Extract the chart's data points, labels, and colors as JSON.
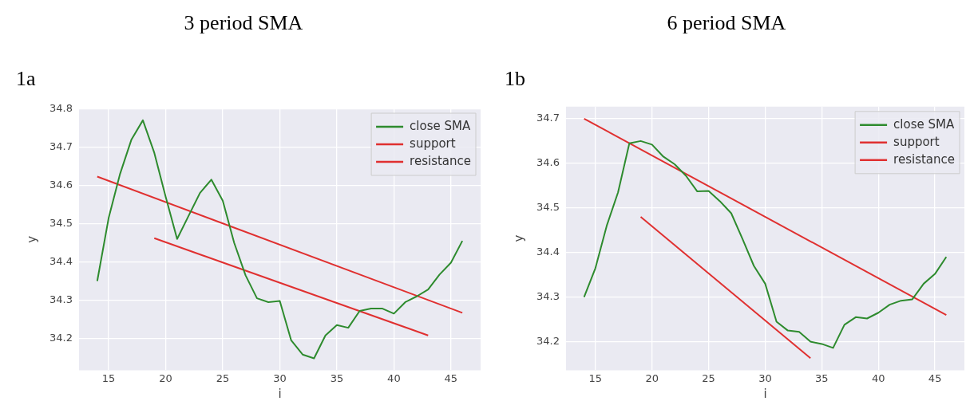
{
  "chart_data": [
    {
      "type": "line",
      "title": "3 period SMA",
      "subtitle": "1a",
      "xlabel": "i",
      "ylabel": "y",
      "xlim": [
        12.4,
        47.6
      ],
      "xticks": [
        15,
        20,
        25,
        30,
        35,
        40,
        45
      ],
      "ylim": [
        34.117,
        34.801
      ],
      "yticks": [
        34.2,
        34.3,
        34.4,
        34.5,
        34.6,
        34.7,
        34.8
      ],
      "grid": true,
      "legend": "top right",
      "line_style": "solid",
      "marker": "none",
      "series": [
        {
          "name": "close SMA",
          "color": "#2e8b2e",
          "x": [
            14,
            15,
            16,
            17,
            18,
            19,
            20,
            21,
            22,
            23,
            24,
            25,
            26,
            27,
            28,
            29,
            30,
            31,
            32,
            33,
            34,
            35,
            36,
            37,
            38,
            39,
            40,
            41,
            42,
            43,
            44,
            45,
            46
          ],
          "values": [
            34.35,
            34.515,
            34.63,
            34.72,
            34.77,
            34.685,
            34.57,
            34.46,
            34.52,
            34.58,
            34.615,
            34.56,
            34.45,
            34.365,
            34.305,
            34.295,
            34.298,
            34.195,
            34.158,
            34.148,
            34.208,
            34.235,
            34.228,
            34.272,
            34.278,
            34.278,
            34.265,
            34.295,
            34.31,
            34.328,
            34.367,
            34.398,
            34.455
          ]
        },
        {
          "name": "support",
          "color": "#e03030",
          "x": [
            19,
            43
          ],
          "values": [
            34.462,
            34.208
          ]
        },
        {
          "name": "resistance",
          "color": "#e03030",
          "x": [
            14,
            46
          ],
          "values": [
            34.623,
            34.267
          ]
        }
      ]
    },
    {
      "type": "line",
      "title": "6 period SMA",
      "subtitle": "1b",
      "xlabel": "i",
      "ylabel": "y",
      "xlim": [
        12.4,
        47.6
      ],
      "xticks": [
        15,
        20,
        25,
        30,
        35,
        40,
        45
      ],
      "ylim": [
        34.136,
        34.727
      ],
      "yticks": [
        34.2,
        34.3,
        34.4,
        34.5,
        34.6,
        34.7
      ],
      "grid": true,
      "legend": "top right",
      "line_style": "solid",
      "marker": "none",
      "series": [
        {
          "name": "close SMA",
          "color": "#2e8b2e",
          "x": [
            14,
            15,
            16,
            17,
            18,
            19,
            20,
            21,
            22,
            23,
            24,
            25,
            26,
            27,
            28,
            29,
            30,
            31,
            32,
            33,
            34,
            35,
            36,
            37,
            38,
            39,
            40,
            41,
            42,
            43,
            44,
            45,
            46
          ],
          "values": [
            34.3,
            34.365,
            34.46,
            34.535,
            34.645,
            34.65,
            34.642,
            34.615,
            34.598,
            34.572,
            34.537,
            34.538,
            34.515,
            34.488,
            34.43,
            34.37,
            34.33,
            34.245,
            34.225,
            34.222,
            34.2,
            34.195,
            34.186,
            34.238,
            34.255,
            34.252,
            34.265,
            34.283,
            34.292,
            34.295,
            34.33,
            34.352,
            34.39
          ]
        },
        {
          "name": "support",
          "color": "#e03030",
          "x": [
            19,
            34
          ],
          "values": [
            34.48,
            34.163
          ]
        },
        {
          "name": "resistance",
          "color": "#e03030",
          "x": [
            14,
            46
          ],
          "values": [
            34.7,
            34.26
          ]
        }
      ]
    }
  ]
}
